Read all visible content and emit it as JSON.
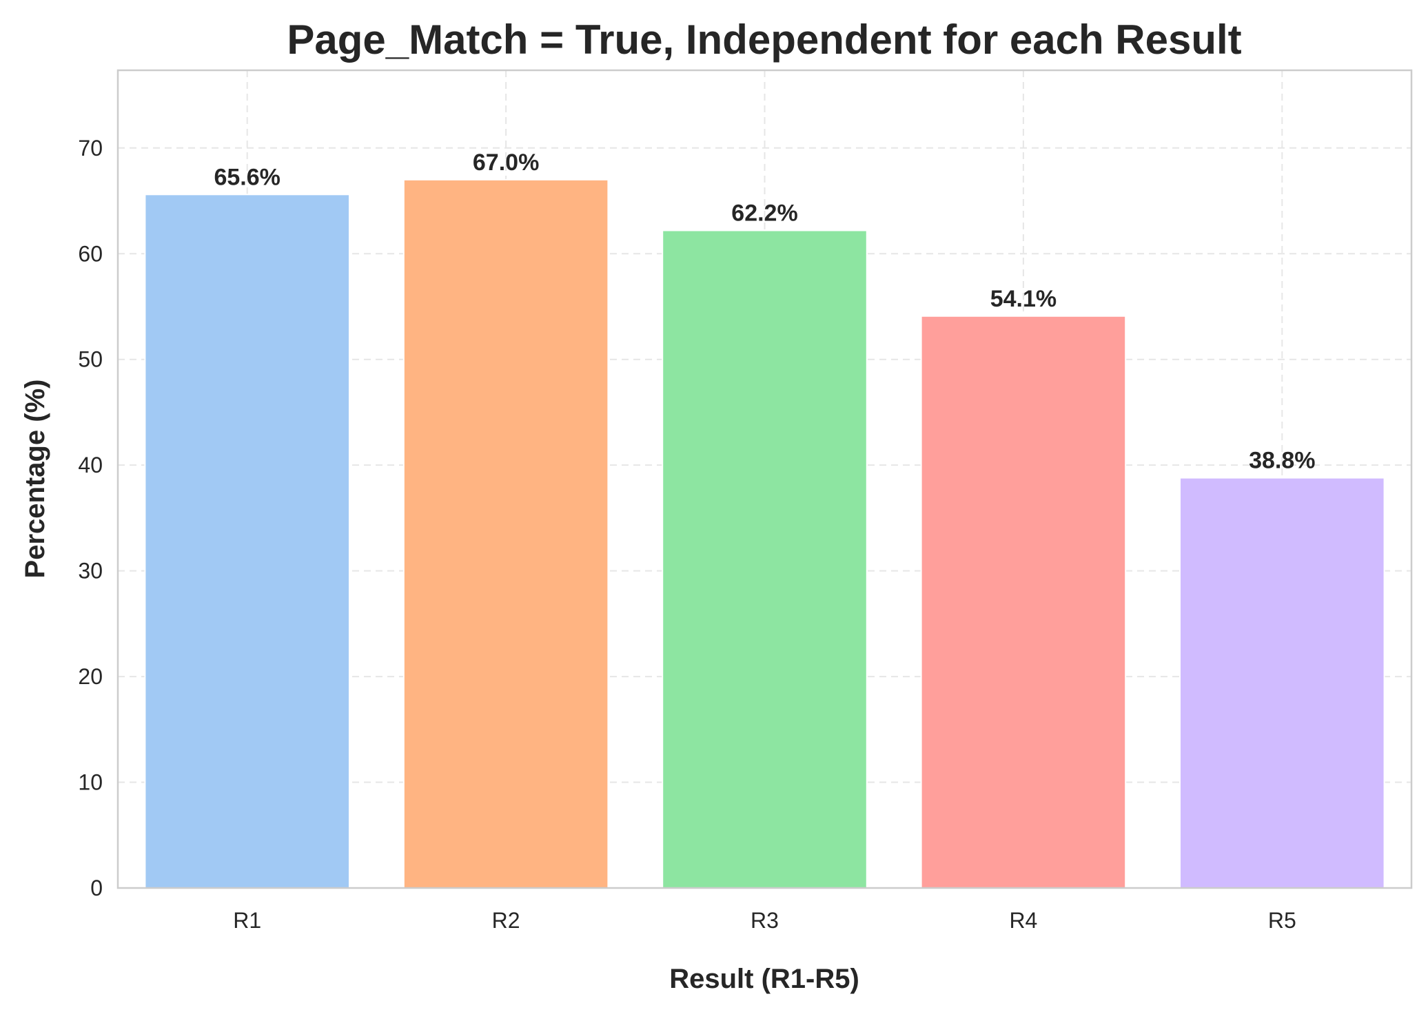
{
  "chart_data": {
    "type": "bar",
    "title": "Page_Match = True, Independent for each Result",
    "xlabel": "Result (R1-R5)",
    "ylabel": "Percentage (%)",
    "categories": [
      "R1",
      "R2",
      "R3",
      "R4",
      "R5"
    ],
    "values": [
      65.6,
      67.0,
      62.2,
      54.1,
      38.8
    ],
    "data_labels": [
      "65.6%",
      "67.0%",
      "62.2%",
      "54.1%",
      "38.8%"
    ],
    "colors": [
      "#a1c9f4",
      "#ffb482",
      "#8de5a1",
      "#ff9f9b",
      "#d0bbff"
    ],
    "ylim": [
      0,
      77.35
    ],
    "yticks": [
      0,
      10,
      20,
      30,
      40,
      50,
      60,
      70
    ],
    "grid": true
  }
}
